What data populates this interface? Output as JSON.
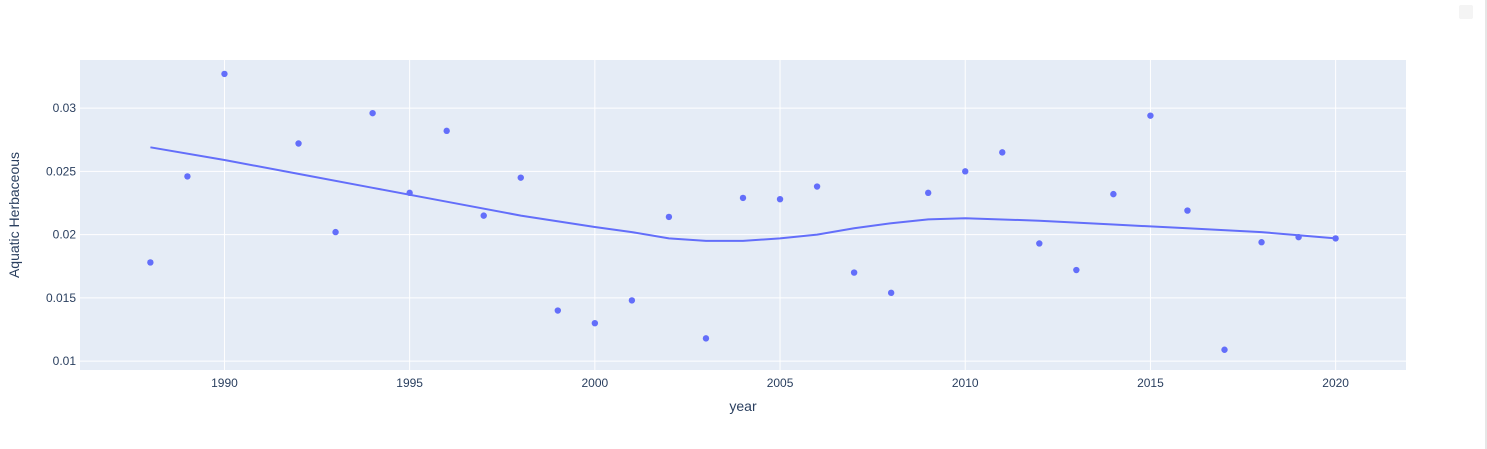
{
  "chart_data": {
    "type": "scatter",
    "xlabel": "year",
    "ylabel": "Aquatic Herbaceous",
    "xlim": [
      1986.1,
      2021.9
    ],
    "ylim": [
      0.0093,
      0.0338
    ],
    "xticks": [
      1990,
      1995,
      2000,
      2005,
      2010,
      2015,
      2020
    ],
    "yticks": [
      0.01,
      0.015,
      0.02,
      0.025,
      0.03
    ],
    "ytick_labels": [
      "0.01",
      "0.015",
      "0.02",
      "0.025",
      "0.03"
    ],
    "grid": true,
    "colors": {
      "marker": "#636efa",
      "trend": "#636efa",
      "plot_bg": "#e5ecf6",
      "grid": "#ffffff"
    },
    "points": {
      "x": [
        1988,
        1989,
        1990,
        1992,
        1993,
        1994,
        1995,
        1996,
        1997,
        1998,
        1999,
        2000,
        2001,
        2002,
        2003,
        2004,
        2005,
        2006,
        2007,
        2008,
        2009,
        2010,
        2011,
        2012,
        2013,
        2014,
        2015,
        2016,
        2017,
        2018,
        2019,
        2020
      ],
      "y": [
        0.0178,
        0.0246,
        0.0327,
        0.0272,
        0.0202,
        0.0296,
        0.0233,
        0.0282,
        0.0215,
        0.0245,
        0.014,
        0.013,
        0.0148,
        0.0214,
        0.0118,
        0.0229,
        0.0228,
        0.0238,
        0.017,
        0.0154,
        0.0233,
        0.025,
        0.0265,
        0.0193,
        0.0172,
        0.0232,
        0.0294,
        0.0219,
        0.0109,
        0.0194,
        0.0198,
        0.0197
      ]
    },
    "trend": {
      "x": [
        1988,
        1990,
        1992,
        1994,
        1996,
        1998,
        2000,
        2001,
        2002,
        2003,
        2004,
        2005,
        2006,
        2007,
        2008,
        2009,
        2010,
        2012,
        2014,
        2016,
        2018,
        2020
      ],
      "y": [
        0.0269,
        0.0259,
        0.0248,
        0.0237,
        0.0226,
        0.0215,
        0.0206,
        0.0202,
        0.0197,
        0.0195,
        0.0195,
        0.0197,
        0.02,
        0.0205,
        0.0209,
        0.0212,
        0.0213,
        0.0211,
        0.0208,
        0.0205,
        0.0202,
        0.0197
      ]
    }
  }
}
